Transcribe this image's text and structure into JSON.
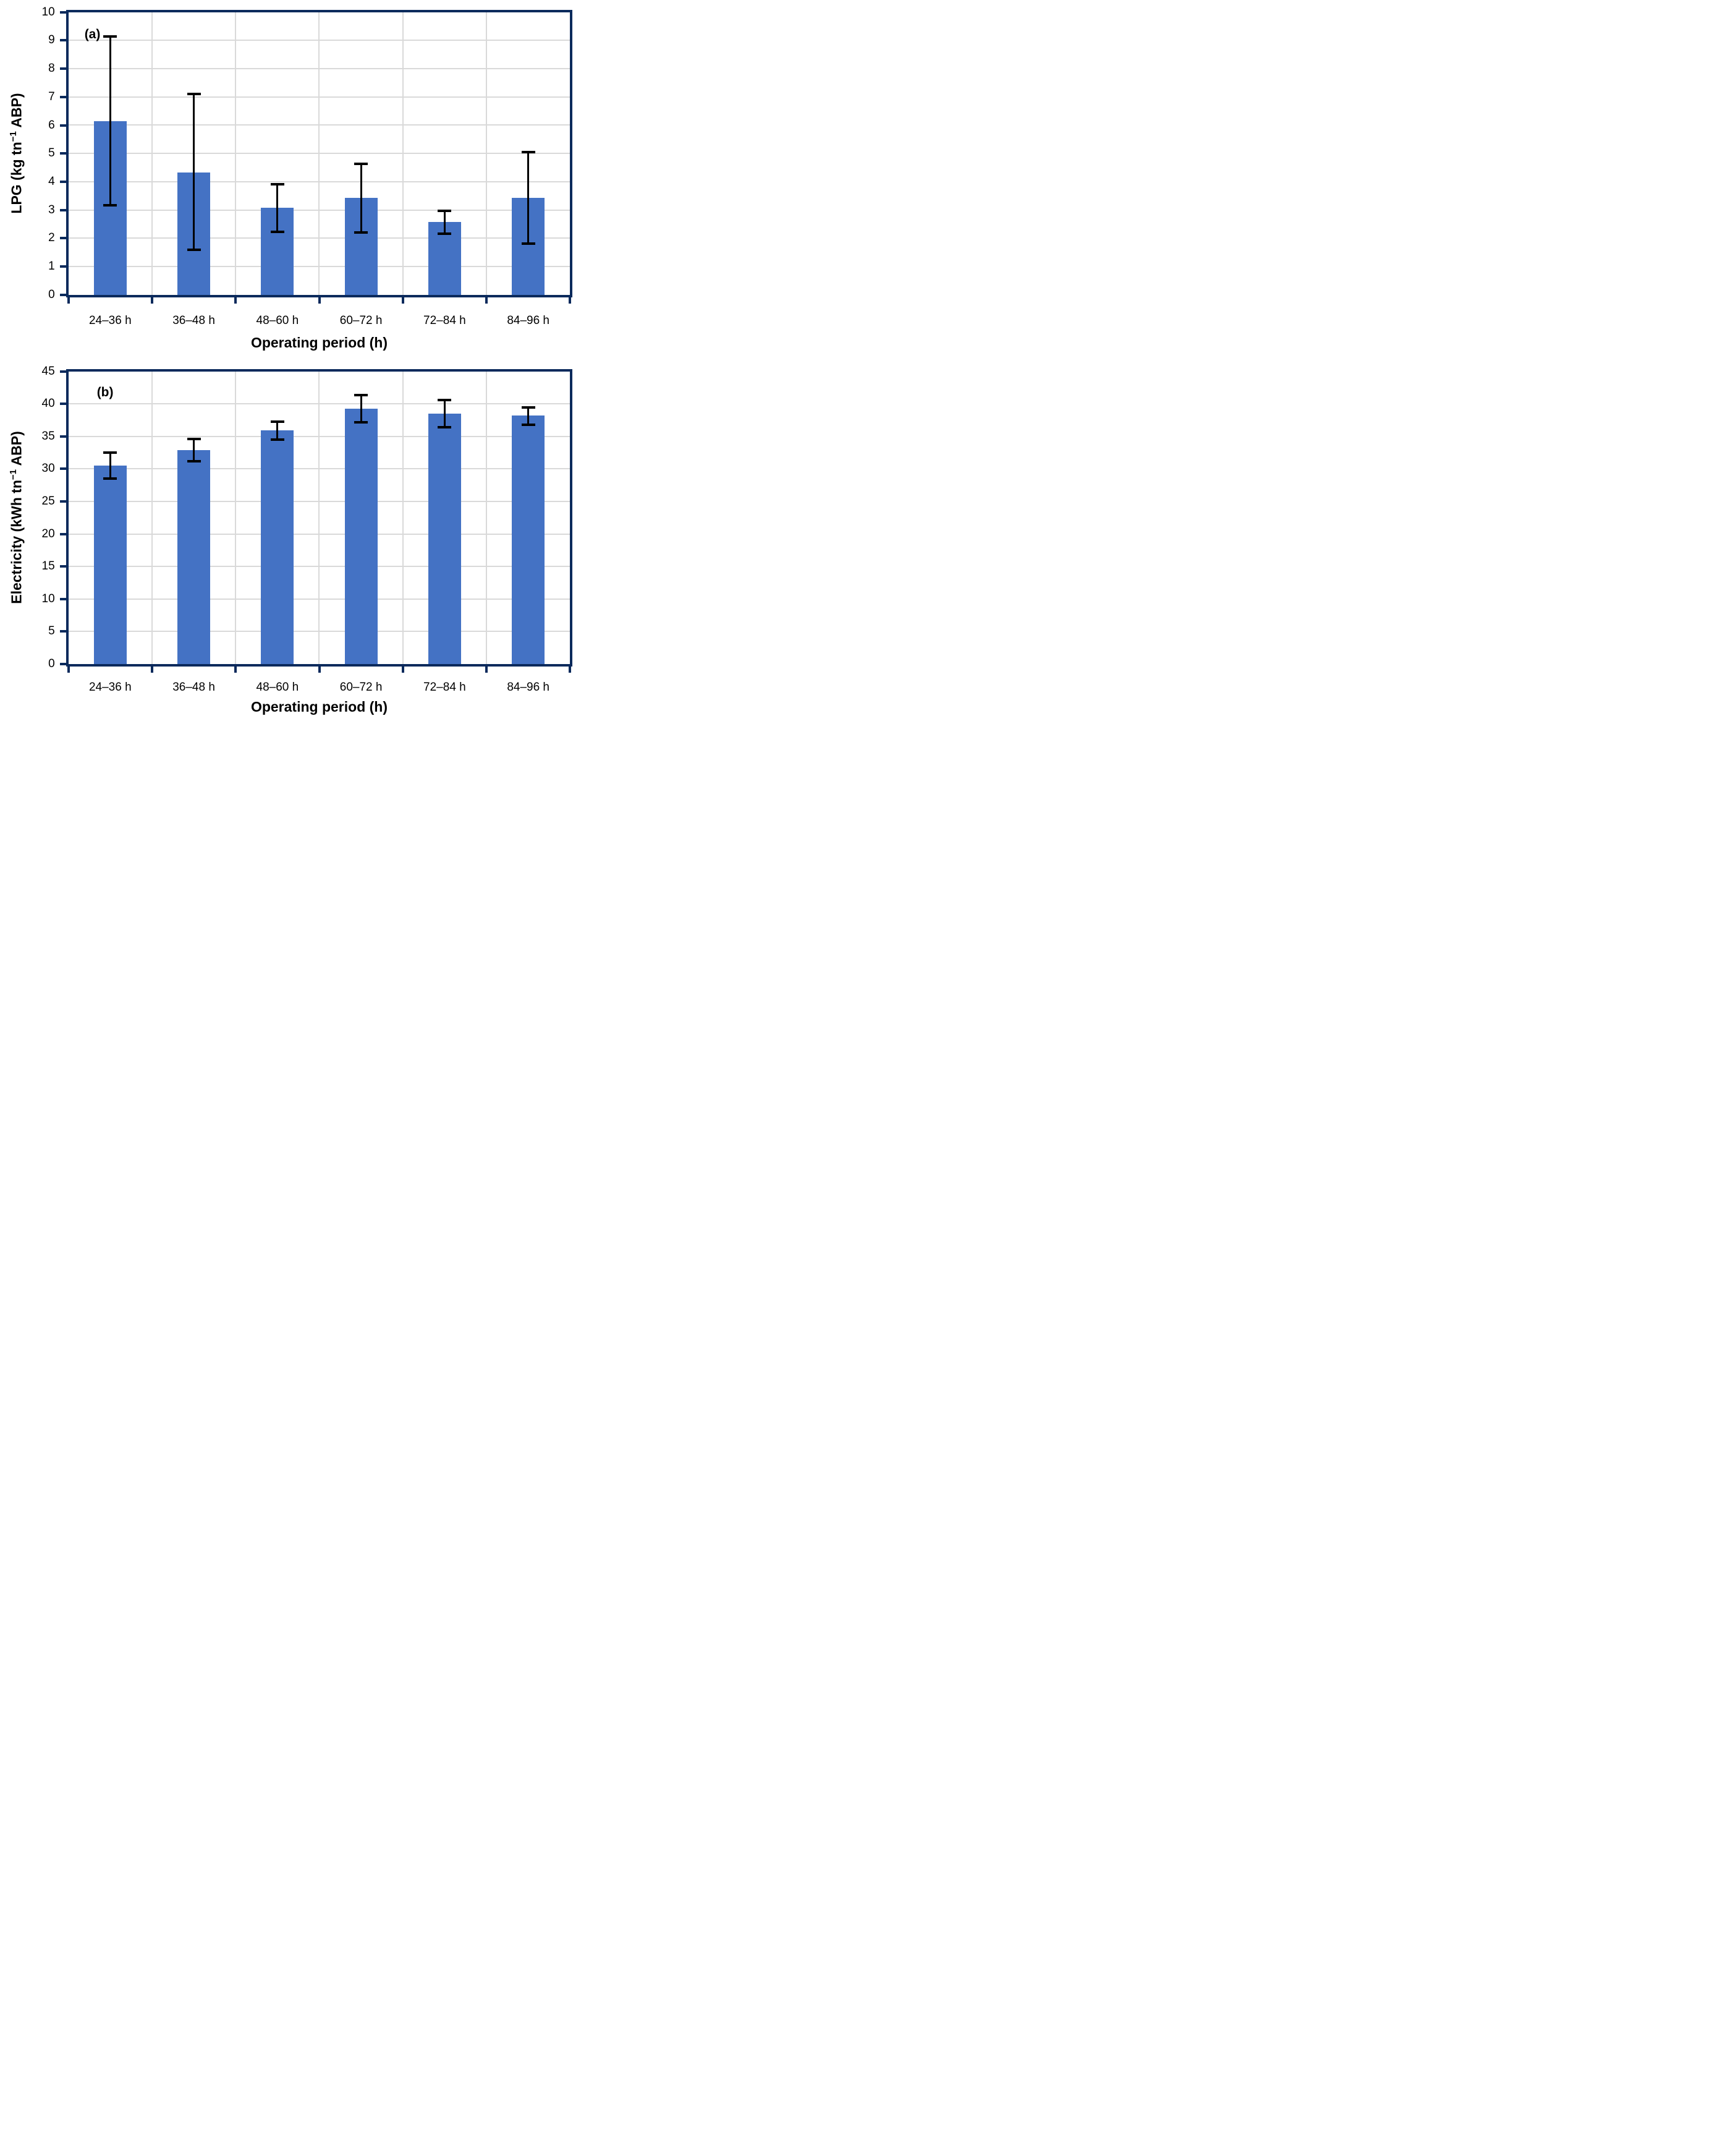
{
  "figure_title": "",
  "colors": {
    "bar_fill": "#4472C4",
    "axis_border": "#0B2A5C",
    "gridline": "#D9D9D9",
    "error_bar": "#000000",
    "text": "#000000",
    "background": "#FFFFFF"
  },
  "chart_data": [
    {
      "type": "bar",
      "panel_label": "(a)",
      "title": "",
      "xlabel": "Operating period (h)",
      "ylabel": "LPG (kg tn⁻¹ ABP)",
      "ylabel_parts": {
        "pre": "LPG (kg tn",
        "sup": "−1",
        "post": " ABP)"
      },
      "categories": [
        "24–36 h",
        "36–48 h",
        "48–60 h",
        "60–72 h",
        "72–84 h",
        "84–96 h"
      ],
      "values": [
        6.15,
        4.33,
        3.07,
        3.42,
        2.57,
        3.43
      ],
      "error_upper_abs": [
        9.15,
        7.1,
        3.92,
        4.64,
        2.97,
        5.05
      ],
      "error_lower_abs": [
        3.17,
        1.6,
        2.22,
        2.2,
        2.17,
        1.8
      ],
      "ylim": [
        0,
        10
      ],
      "ytick_step": 1,
      "ytick_labels": [
        "0",
        "1",
        "2",
        "3",
        "4",
        "5",
        "6",
        "7",
        "8",
        "9",
        "10"
      ],
      "grid": "both",
      "legend": "none"
    },
    {
      "type": "bar",
      "panel_label": "(b)",
      "title": "",
      "xlabel": "Operating period (h)",
      "ylabel": "Electricity (kWh tn⁻¹ ABP)",
      "ylabel_parts": {
        "pre": "Electricity (kWh tn",
        "sup": "−1",
        "post": " ABP)"
      },
      "categories": [
        "24–36 h",
        "36–48 h",
        "48–60 h",
        "60–72 h",
        "72–84 h",
        "84–96 h"
      ],
      "values": [
        30.5,
        32.9,
        35.9,
        39.3,
        38.5,
        38.2
      ],
      "error_upper_abs": [
        32.5,
        34.6,
        37.3,
        41.4,
        40.6,
        39.5
      ],
      "error_lower_abs": [
        28.5,
        31.2,
        34.5,
        37.2,
        36.4,
        36.8
      ],
      "ylim": [
        0,
        45
      ],
      "ytick_step": 5,
      "ytick_labels": [
        "0",
        "5",
        "10",
        "15",
        "20",
        "25",
        "30",
        "35",
        "40",
        "45"
      ],
      "grid": "both",
      "legend": "none"
    }
  ]
}
